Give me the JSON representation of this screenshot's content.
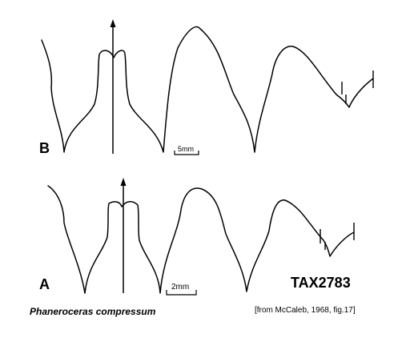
{
  "figure": {
    "labels": {
      "upper": "B",
      "lower": "A"
    },
    "scale_bars": {
      "upper": "5mm",
      "lower": "2mm"
    },
    "specimen_id": "TAX2783",
    "species": "Phaneroceras compressum",
    "source": "[from McCaleb, 1968, fig.17]"
  },
  "colors": {
    "ink": "#000000",
    "background": "#ffffff"
  }
}
